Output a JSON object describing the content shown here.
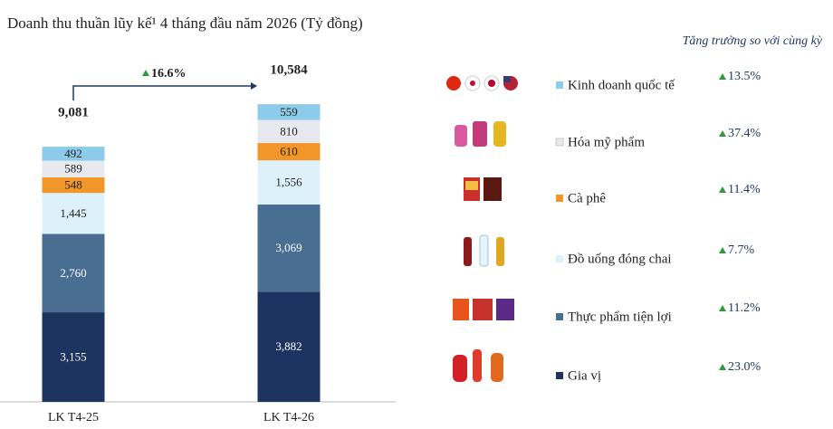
{
  "chart_data": {
    "type": "stacked_bar",
    "title": "Doanh thu thuần lũy kế¹ 4 tháng đầu năm 2026 (Tỷ đồng)",
    "growth_header": "Tăng trưởng so với cùng kỳ",
    "categories": [
      "LK T4-25",
      "LK T4-26"
    ],
    "ylim": [
      0,
      11000
    ],
    "totals": [
      {
        "value": 9081,
        "label": "9,081"
      },
      {
        "value": 10584,
        "label": "10,584"
      }
    ],
    "total_growth": {
      "value": 16.6,
      "label": "16.6%"
    },
    "series": [
      {
        "name": "Gia vị",
        "color": "#1d3461",
        "text_color": "#ffffff",
        "values": [
          3155,
          3882
        ],
        "value_labels": [
          "3,155",
          "3,882"
        ],
        "growth": {
          "value": 23.0,
          "label": "23.0%"
        }
      },
      {
        "name": "Thực phẩm tiện lợi",
        "color": "#4a6e92",
        "text_color": "#ffffff",
        "values": [
          2760,
          3069
        ],
        "value_labels": [
          "2,760",
          "3,069"
        ],
        "growth": {
          "value": 11.2,
          "label": "11.2%"
        }
      },
      {
        "name": "Đồ uống đóng chai",
        "color": "#ddf1fb",
        "text_color": "#222222",
        "values": [
          1445,
          1556
        ],
        "value_labels": [
          "1,445",
          "1,556"
        ],
        "growth": {
          "value": 7.7,
          "label": "7.7%"
        }
      },
      {
        "name": "Cà phê",
        "color": "#f2962a",
        "text_color": "#222222",
        "values": [
          548,
          610
        ],
        "value_labels": [
          "548",
          "610"
        ],
        "growth": {
          "value": 11.4,
          "label": "11.4%"
        }
      },
      {
        "name": "Hóa mỹ phẩm",
        "color": "#e8e9ee",
        "text_color": "#222222",
        "values": [
          589,
          810
        ],
        "value_labels": [
          "589",
          "810"
        ],
        "growth": {
          "value": 37.4,
          "label": "37.4%"
        }
      },
      {
        "name": "Kinh doanh quốc tế",
        "color": "#8ccbea",
        "text_color": "#222222",
        "values": [
          492,
          559
        ],
        "value_labels": [
          "492",
          "559"
        ],
        "growth": {
          "value": 13.5,
          "label": "13.5%"
        }
      }
    ]
  }
}
